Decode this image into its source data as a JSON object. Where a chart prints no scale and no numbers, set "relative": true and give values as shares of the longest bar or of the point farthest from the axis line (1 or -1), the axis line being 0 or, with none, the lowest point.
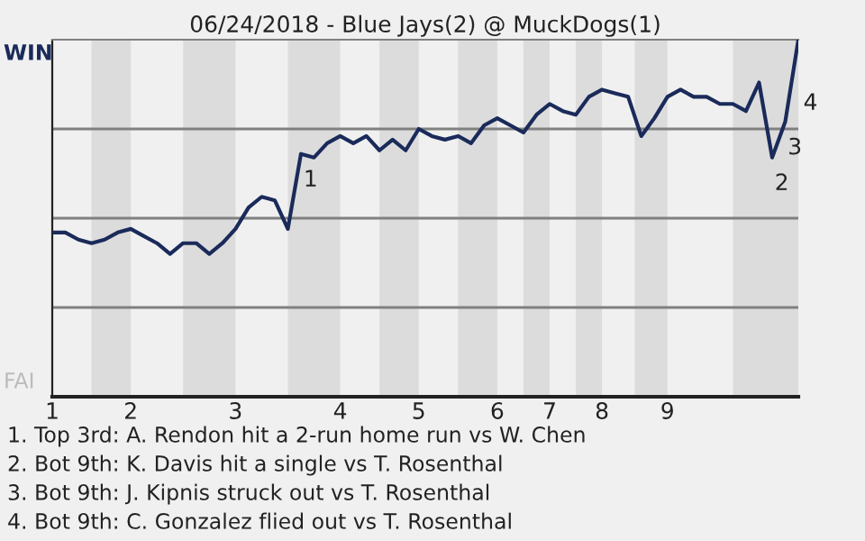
{
  "chart_data": {
    "type": "line",
    "title": "06/24/2018 - Blue Jays(2) @ MuckDogs(1)",
    "relative": true,
    "categories": [
      "1",
      null,
      null,
      null,
      null,
      null,
      "2",
      null,
      null,
      null,
      null,
      null,
      null,
      null,
      "3",
      null,
      null,
      null,
      null,
      null,
      null,
      null,
      "4",
      null,
      null,
      null,
      null,
      null,
      "5",
      null,
      null,
      null,
      null,
      null,
      "6",
      null,
      null,
      null,
      "7",
      null,
      null,
      null,
      "8",
      null,
      null,
      null,
      null,
      "9",
      null,
      null,
      null,
      null,
      null,
      null,
      null,
      null,
      null,
      null
    ],
    "legend": false,
    "marker": "none",
    "line_style": "solid",
    "series": [
      {
        "color": "#1a2a5a",
        "values": [
          0.46,
          0.46,
          0.44,
          0.43,
          0.44,
          0.46,
          0.47,
          0.45,
          0.43,
          0.4,
          0.43,
          0.43,
          0.4,
          0.43,
          0.47,
          0.53,
          0.56,
          0.55,
          0.47,
          0.68,
          0.67,
          0.71,
          0.73,
          0.71,
          0.73,
          0.69,
          0.72,
          0.69,
          0.75,
          0.73,
          0.72,
          0.73,
          0.71,
          0.76,
          0.78,
          0.76,
          0.74,
          0.79,
          0.82,
          0.8,
          0.79,
          0.84,
          0.86,
          0.85,
          0.84,
          0.73,
          0.78,
          0.84,
          0.86,
          0.84,
          0.84,
          0.82,
          0.82,
          0.8,
          0.88,
          0.67,
          0.77,
          1.0
        ]
      }
    ],
    "ref_lines": [
      {
        "axis": "y",
        "value": 0.25,
        "color": "#808080"
      },
      {
        "axis": "y",
        "value": 0.5,
        "color": "#808080"
      },
      {
        "axis": "y",
        "value": 0.75,
        "color": "#808080"
      }
    ],
    "annotations": [
      {
        "text": "1",
        "y": 0.68
      },
      {
        "text": "2",
        "y": 0.67
      },
      {
        "text": "3",
        "y": 0.77
      },
      "4",
      "WIN",
      "FAI",
      "1. Top 3rd: A. Rendon hit a 2-run home run vs W. Chen",
      "2. Bot 9th: K. Davis hit a single vs T. Rosenthal",
      "3. Bot 9th: J. Kipnis struck out vs T. Rosenthal",
      "4. Bot 9th: C. Gonzalez flied out vs T. Rosenthal"
    ]
  }
}
